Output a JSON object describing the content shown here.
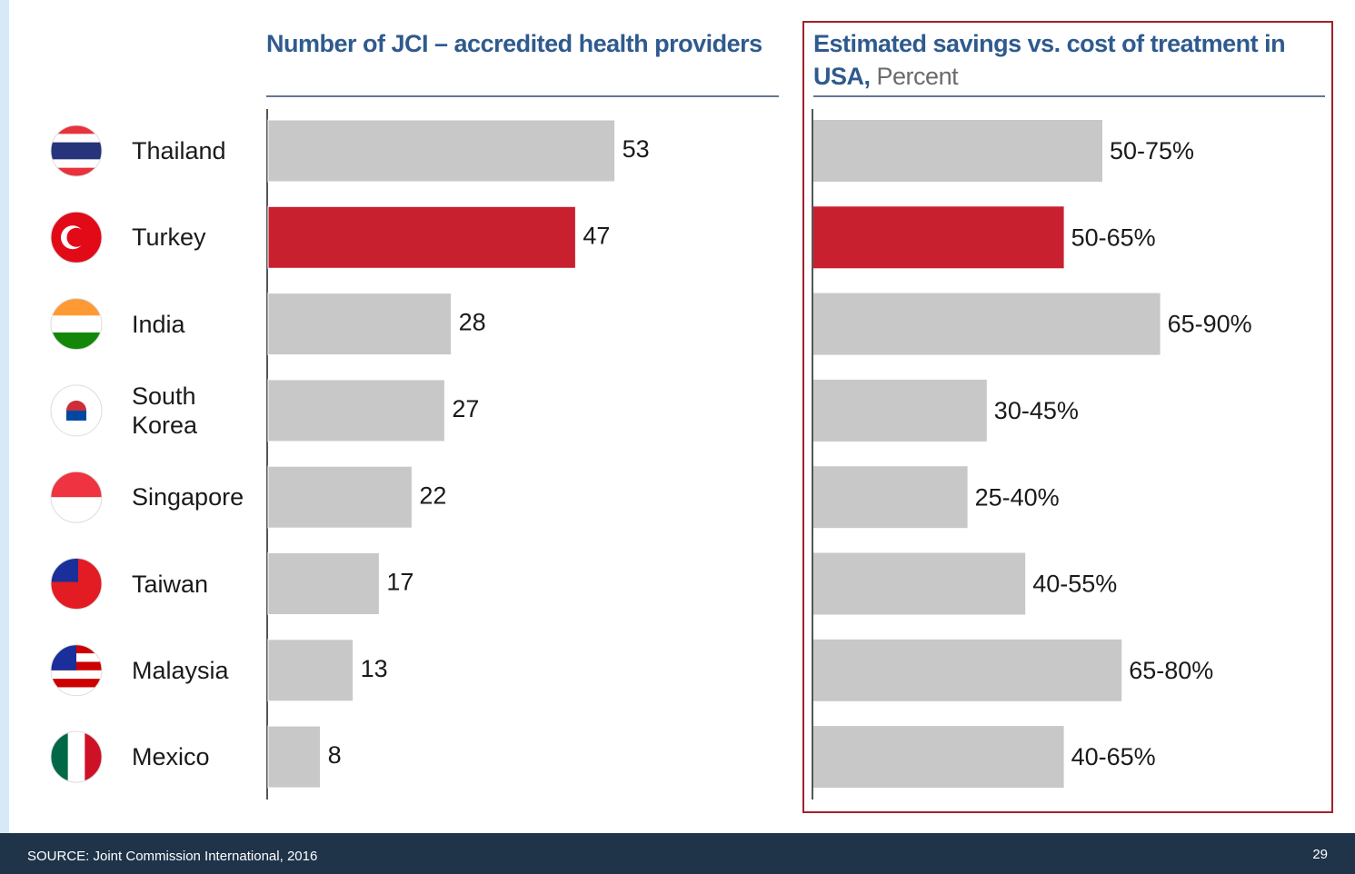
{
  "chart_data": [
    {
      "type": "bar",
      "orientation": "horizontal",
      "title": "Number of JCI – accredited health providers",
      "categories": [
        "Thailand",
        "Turkey",
        "India",
        "South Korea",
        "Singapore",
        "Taiwan",
        "Malaysia",
        "Mexico"
      ],
      "values": [
        53,
        47,
        28,
        27,
        22,
        17,
        13,
        8
      ],
      "colors": [
        "#c8c8c8",
        "#c8202f",
        "#c8c8c8",
        "#c8c8c8",
        "#c8c8c8",
        "#c8c8c8",
        "#c8c8c8",
        "#c8c8c8"
      ]
    },
    {
      "type": "range_bar",
      "orientation": "horizontal",
      "title": "Estimated savings vs. cost of treatment in USA,",
      "unit_label": "Percent",
      "values": [
        [
          50,
          75
        ],
        [
          50,
          65
        ],
        [
          65,
          90
        ],
        [
          30,
          45
        ],
        [
          25,
          40
        ],
        [
          40,
          55
        ],
        [
          65,
          80
        ],
        [
          40,
          65
        ]
      ],
      "value_labels": [
        "50-75%",
        "50-65%",
        "65-90%",
        "30-45%",
        "25-40%",
        "40-55%",
        "65-80%",
        "40-65%"
      ],
      "colors": [
        "#c8c8c8",
        "#c8202f",
        "#c8c8c8",
        "#c8c8c8",
        "#c8c8c8",
        "#c8c8c8",
        "#c8c8c8",
        "#c8c8c8"
      ]
    }
  ],
  "footer": {
    "source": "SOURCE: Joint Commission International, 2016",
    "page": "29"
  }
}
